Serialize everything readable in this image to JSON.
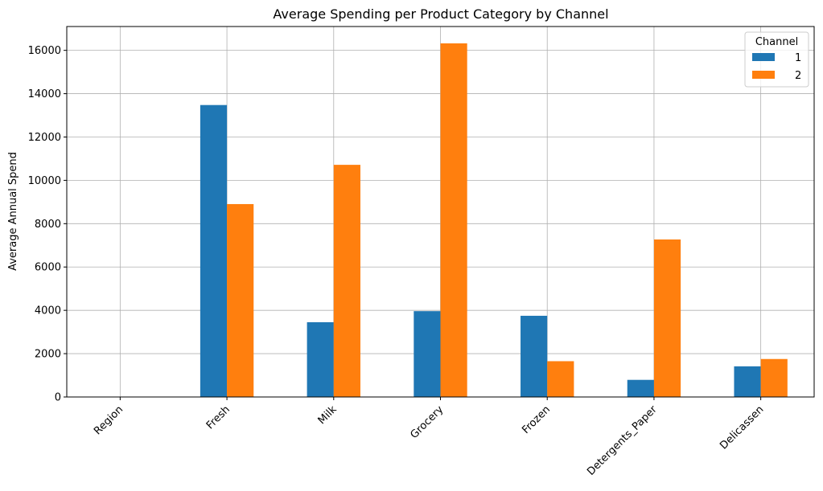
{
  "chart_data": {
    "type": "bar",
    "title": "Average Spending per Product Category by Channel",
    "xlabel": "",
    "ylabel": "Average Annual Spend",
    "categories": [
      "Region",
      "Fresh",
      "Milk",
      "Grocery",
      "Frozen",
      "Detergents_Paper",
      "Delicassen"
    ],
    "series": [
      {
        "name": "1",
        "color": "#1f77b4",
        "values": [
          2.5,
          13476,
          3451,
          3962,
          3748,
          790,
          1415
        ]
      },
      {
        "name": "2",
        "color": "#ff7f0e",
        "values": [
          2.6,
          8904,
          10716,
          16323,
          1652,
          7270,
          1753
        ]
      }
    ],
    "ylim": [
      0,
      17100
    ],
    "yticks": [
      0,
      2000,
      4000,
      6000,
      8000,
      10000,
      12000,
      14000,
      16000
    ],
    "ytick_labels": [
      "0",
      "2000",
      "4000",
      "6000",
      "8000",
      "10000",
      "12000",
      "14000",
      "16000"
    ],
    "grid": true,
    "legend": {
      "title": "Channel",
      "position": "top-right"
    }
  }
}
